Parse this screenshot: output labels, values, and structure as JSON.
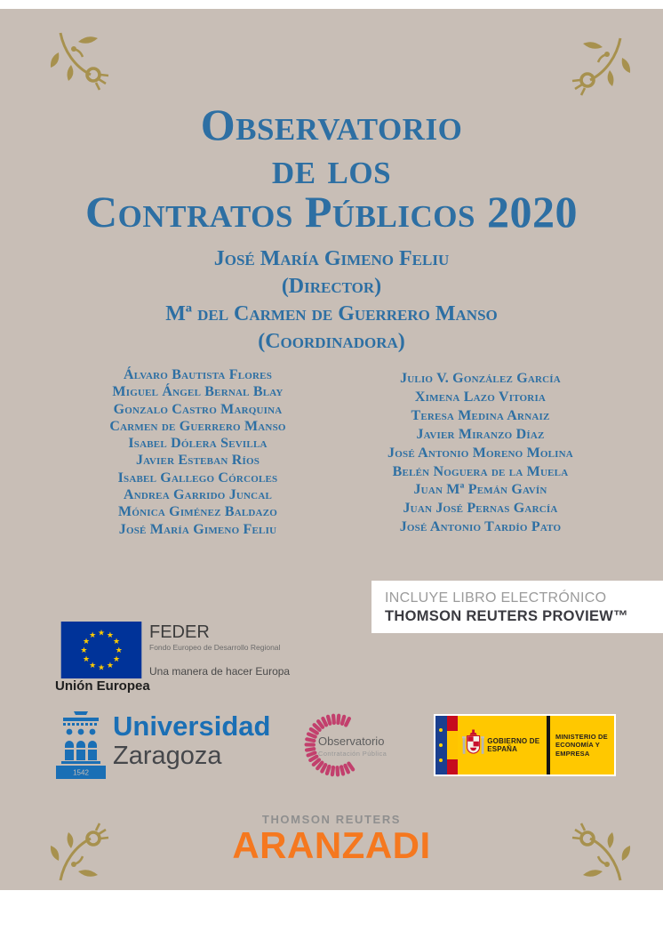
{
  "cover": {
    "title_lines": [
      "Observatorio",
      "de los",
      "Contratos Públicos 2020"
    ],
    "director": {
      "name": "José María Gimeno Feliu",
      "role": "(Director)"
    },
    "coordinator": {
      "name": "Mª del Carmen de Guerrero Manso",
      "role": "(Coordinadora)"
    },
    "contributors": {
      "left": [
        "Álvaro Bautista Flores",
        "Miguel Ángel Bernal Blay",
        "Gonzalo Castro Marquina",
        "Carmen de Guerrero Manso",
        "Isabel Dólera Sevilla",
        "Javier Esteban Ríos",
        "Isabel Gallego Córcoles",
        "Andrea Garrido Juncal",
        "Mónica Giménez Baldazo",
        "José María Gimeno Feliu"
      ],
      "right": [
        "Julio V. González García",
        "Ximena Lazo Vitoria",
        "Teresa Medina Arnaiz",
        "Javier Miranzo Díaz",
        "José Antonio Moreno Molina",
        "Belén Noguera de la Muela",
        "Juan Mª Pemán Gavín",
        "Juan José Pernas García",
        "José Antonio Tardío Pato"
      ]
    }
  },
  "proview": {
    "line1": "INCLUYE LIBRO ELECTRÓNICO",
    "line2": "THOMSON REUTERS PROVIEW™"
  },
  "eu": {
    "label": "Unión Europea",
    "feder_title": "FEDER",
    "feder_subtitle": "Fondo Europeo de Desarrollo Regional",
    "feder_tagline": "Una manera de hacer Europa"
  },
  "unizar": {
    "name": "Universidad",
    "city": "Zaragoza",
    "founding_year": "1542"
  },
  "observatorio": {
    "label": "Observatorio",
    "sublabel": "Contratación Pública"
  },
  "gobierno": {
    "label": "GOBIERNO DE ESPAÑA",
    "ministry": "MINISTERIO DE ECONOMÍA Y EMPRESA"
  },
  "publisher": {
    "group": "THOMSON REUTERS",
    "brand": "ARANZADI"
  },
  "colors": {
    "cover_background": "#c8beb6",
    "title_blue": "#2d6fa3",
    "ornament_gold": "#a7914e",
    "aranzadi_orange": "#f5781f",
    "eu_blue": "#003399",
    "star_yellow": "#ffcc00",
    "gov_yellow": "#ffc800",
    "observatorio_pink": "#c2406d",
    "unizar_blue": "#1a6fb5"
  }
}
